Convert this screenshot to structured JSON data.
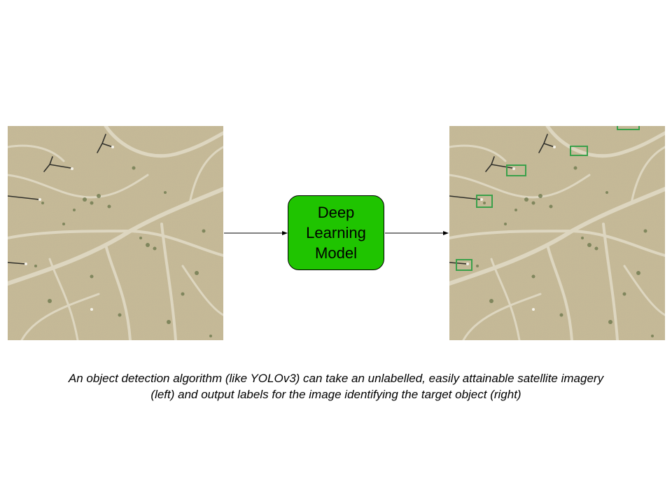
{
  "model_box": {
    "label": "Deep Learning Model",
    "fill_color": "#1fc400"
  },
  "caption": "An object detection algorithm (like YOLOv3) can take an unlabelled, easily attainable satellite imagery (left) and output labels for the image identifying the target object (right)",
  "images": {
    "input": "satellite-image-unlabelled",
    "output": "satellite-image-with-detections"
  },
  "detection_box_color": "#3aa04a",
  "detections_count": 5
}
